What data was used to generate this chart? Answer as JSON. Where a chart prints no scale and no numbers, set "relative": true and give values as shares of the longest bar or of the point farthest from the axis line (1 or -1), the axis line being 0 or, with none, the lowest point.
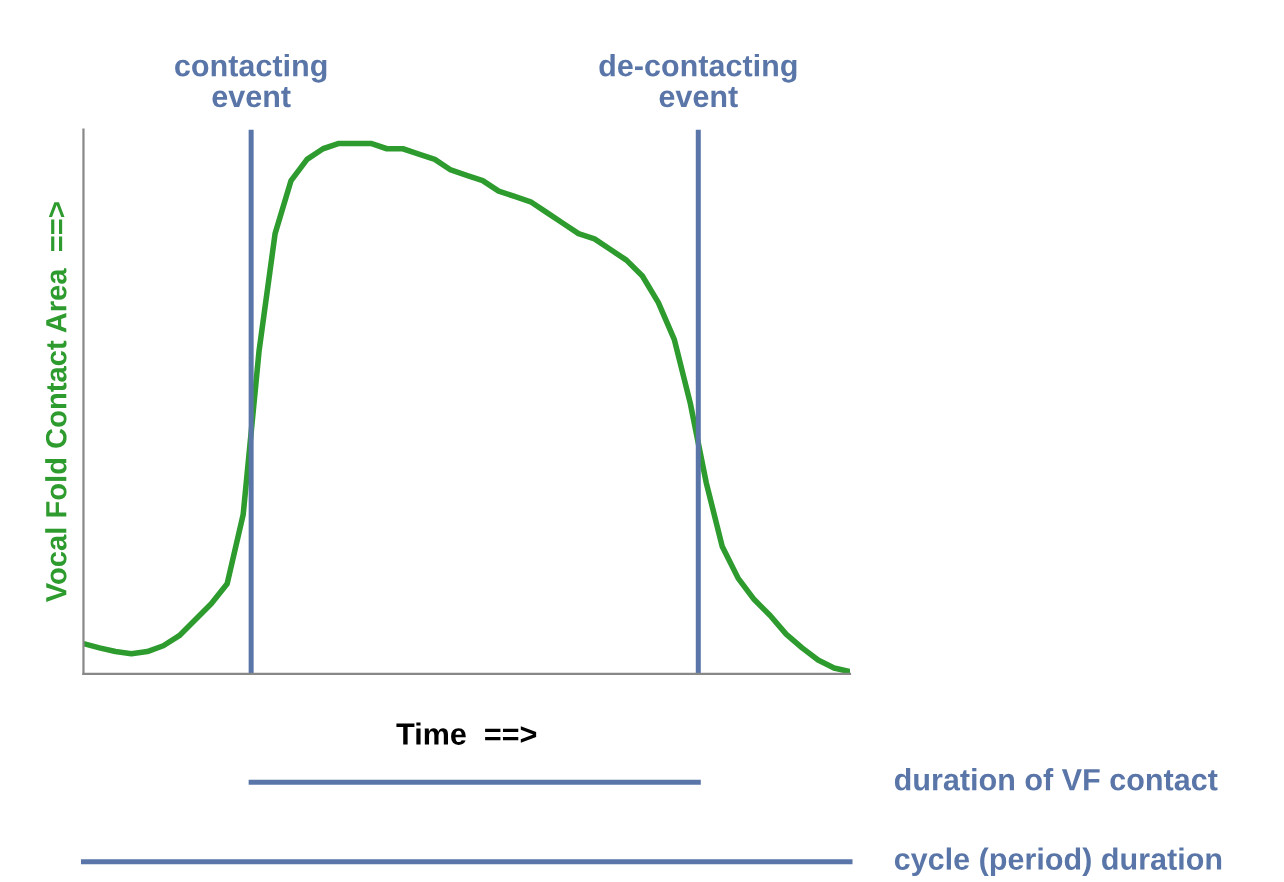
{
  "chart_data": {
    "type": "line",
    "relative": true,
    "xlabel": "Time  ==>",
    "ylabel": "Vocal Fold Contact Area  ==>",
    "categories": [
      null,
      null,
      null,
      null,
      null,
      null,
      null,
      null,
      null,
      null,
      null,
      null,
      null,
      null,
      null,
      null,
      null,
      null,
      null,
      null,
      null,
      null,
      null,
      null,
      null,
      null,
      null,
      null,
      null,
      null,
      null,
      null,
      null,
      null,
      null,
      null,
      null,
      null,
      null,
      null,
      null,
      null,
      null,
      null,
      null,
      null,
      null,
      null,
      null
    ],
    "series": [
      {
        "color": "#2e9b2e",
        "values": [
          0.057,
          0.049,
          0.042,
          0.038,
          0.042,
          0.053,
          0.072,
          0.102,
          0.132,
          0.17,
          0.3,
          0.61,
          0.83,
          0.93,
          0.97,
          0.99,
          1.0,
          1.0,
          1.0,
          0.99,
          0.99,
          0.98,
          0.97,
          0.95,
          0.94,
          0.93,
          0.91,
          0.9,
          0.89,
          0.87,
          0.85,
          0.83,
          0.82,
          0.8,
          0.78,
          0.75,
          0.7,
          0.63,
          0.51,
          0.36,
          0.24,
          0.18,
          0.14,
          0.11,
          0.075,
          0.049,
          0.026,
          0.011,
          0.004
        ]
      }
    ],
    "annotations": [
      "contacting\nevent",
      "de-contacting\nevent",
      "duration of VF contact",
      "cycle (period) duration"
    ],
    "grid": false,
    "legend": false,
    "marker": "none",
    "line_style": "solid"
  }
}
